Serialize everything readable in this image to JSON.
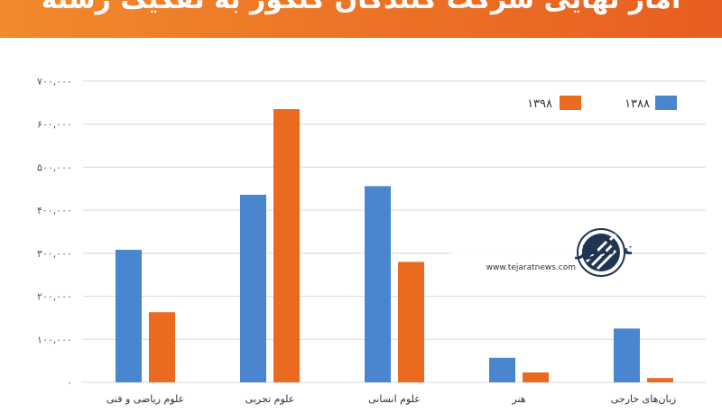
{
  "banner": {
    "title": "آمار نهایی شرکت کنندگان کنکور به تفکیک رشته"
  },
  "watermark": {
    "brand": "تجارت نیوز",
    "url": "www.tejaratnews.com"
  },
  "chart_data": {
    "type": "bar",
    "title": "",
    "xlabel": "",
    "ylabel": "",
    "categories": [
      "علوم ریاضی و فنی",
      "علوم تجربی",
      "علوم انسانی",
      "هنر",
      "زبان‌های خارجی"
    ],
    "series": [
      {
        "name": "۱۳۸۸",
        "color": "#4a86cf",
        "values": [
          308000,
          436000,
          456000,
          57000,
          125000
        ]
      },
      {
        "name": "۱۳۹۸",
        "color": "#ea6a1f",
        "values": [
          163000,
          635000,
          280000,
          23000,
          10000
        ]
      }
    ],
    "ylim": [
      0,
      700000
    ],
    "yticks": [
      0,
      100000,
      200000,
      300000,
      400000,
      500000,
      600000,
      700000
    ],
    "ytick_labels": [
      "۰",
      "۱۰۰,۰۰۰",
      "۲۰۰,۰۰۰",
      "۳۰۰,۰۰۰",
      "۴۰۰,۰۰۰",
      "۵۰۰,۰۰۰",
      "۶۰۰,۰۰۰",
      "۷۰۰,۰۰۰"
    ],
    "grid": true,
    "legend_position": "top-right"
  }
}
